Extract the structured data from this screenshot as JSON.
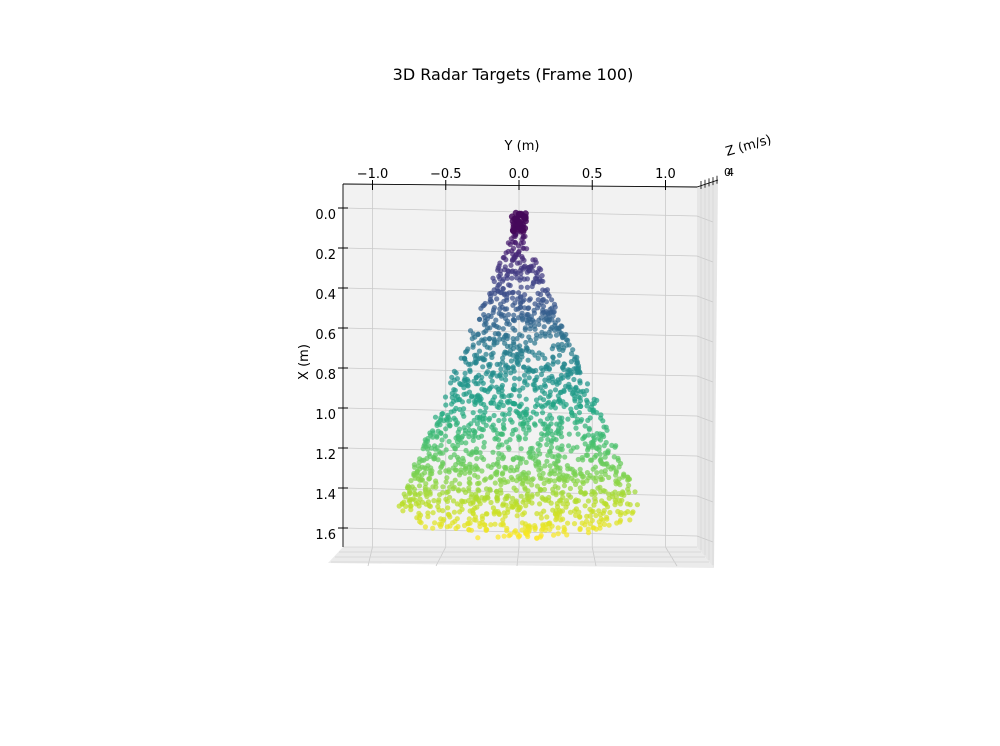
{
  "chart_data": {
    "type": "scatter",
    "projection": "3d",
    "title": "3D Radar Targets (Frame 100)",
    "xlabel": "X (m)",
    "ylabel": "Y (m)",
    "zlabel": "Z (m/s)",
    "x_ticks": [
      "0.0",
      "0.2",
      "0.4",
      "0.6",
      "0.8",
      "1.0",
      "1.2",
      "1.4",
      "1.6"
    ],
    "y_ticks": [
      "−1.0",
      "−0.5",
      "0.0",
      "0.5",
      "1.0"
    ],
    "z_ticks": [
      "0",
      "4"
    ],
    "xlim": [
      0,
      1.65
    ],
    "ylim": [
      -1.2,
      1.2
    ],
    "grid": true,
    "colormap": "viridis",
    "color_by": "X (m)",
    "marker_color_low": "#440154",
    "marker_color_high": "#fde725",
    "point_count": 1800,
    "distribution": "cone-shaped sector: apex at X=0, Y=0; Y-extent grows with X (|Y| <= 0.8*X); outer arc near X=1.6"
  }
}
